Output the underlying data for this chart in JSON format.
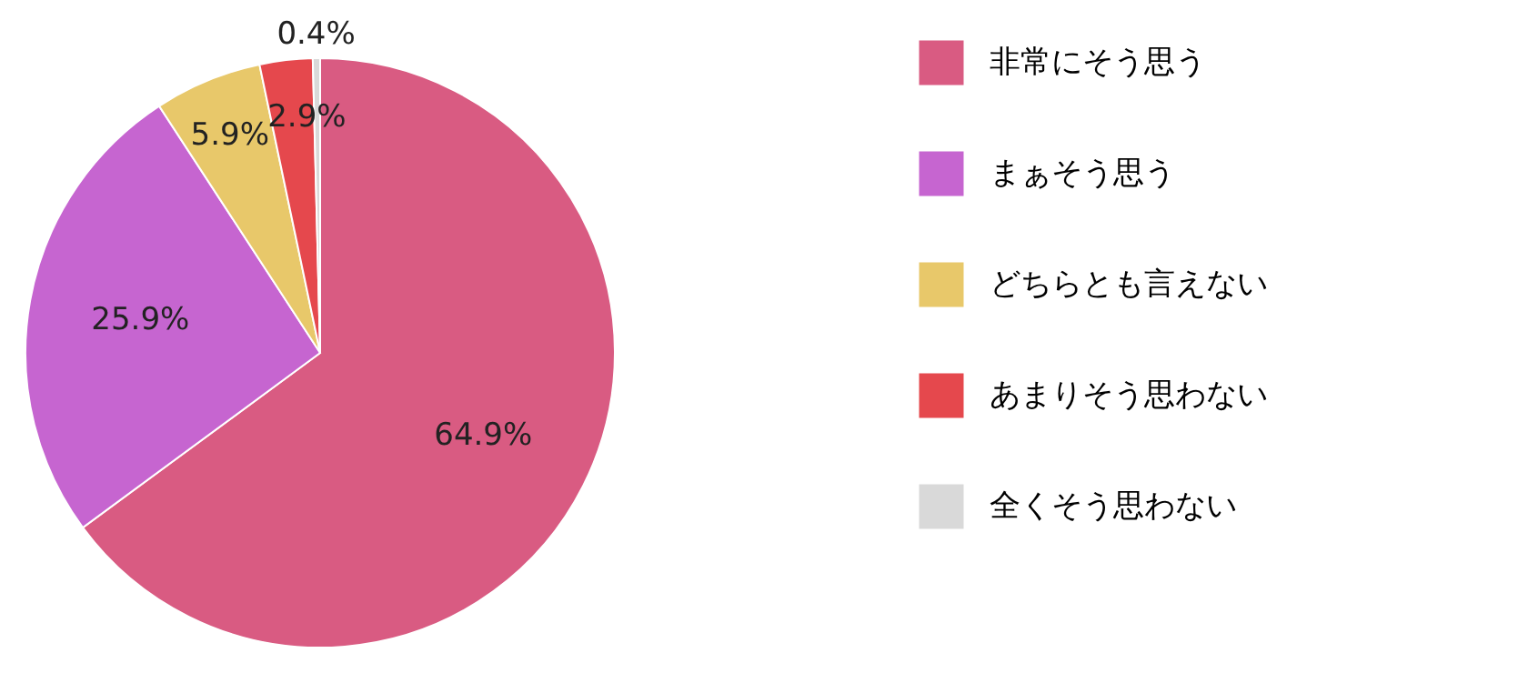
{
  "chart_data": {
    "type": "pie",
    "categories": [
      "非常にそう思う",
      "まぁそう思う",
      "どちらとも言えない",
      "あまりそう思わない",
      "全くそう思わない"
    ],
    "values": [
      64.9,
      25.9,
      5.9,
      2.9,
      0.4
    ],
    "colors": [
      "#d95b82",
      "#c665d0",
      "#e8c86a",
      "#e5484d",
      "#d9d9d9"
    ],
    "value_labels": [
      "64.9%",
      "25.9%",
      "5.9%",
      "2.9%",
      "0.4%"
    ],
    "legend": "right"
  }
}
